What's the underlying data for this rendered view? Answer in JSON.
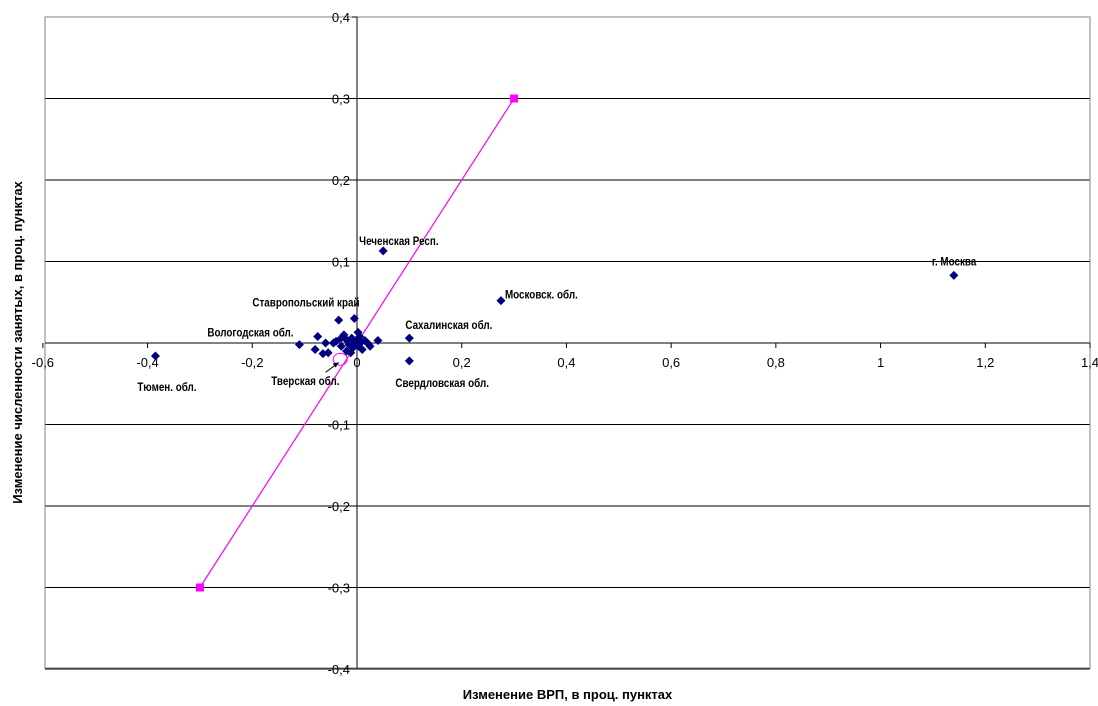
{
  "chart_data": {
    "type": "scatter",
    "title": "",
    "xlabel": "Изменение ВРП, в проц. пунктах",
    "ylabel": "Изменение численности занятых, в проц. пунктах",
    "xlim": [
      -0.6,
      1.4
    ],
    "ylim": [
      -0.4,
      0.4
    ],
    "x_ticks": [
      -0.6,
      -0.4,
      -0.2,
      0,
      0.2,
      0.4,
      0.6,
      0.8,
      1,
      1.2,
      1.4
    ],
    "y_ticks": [
      -0.4,
      -0.3,
      -0.2,
      -0.1,
      0,
      0.1,
      0.2,
      0.3,
      0.4
    ],
    "x_tick_labels": [
      "-0,6",
      "-0,4",
      "-0,2",
      "0",
      "0,2",
      "0,4",
      "0,6",
      "0,8",
      "1",
      "1,2",
      "1,4"
    ],
    "y_tick_labels": [
      "-0,4",
      "-0,3",
      "-0,2",
      "-0,1",
      "0",
      "0,1",
      "0,2",
      "0,3",
      "0,4"
    ],
    "grid": "horizontal",
    "legend": "none",
    "colors": {
      "points": "#000080",
      "line": "#ff00ff",
      "grid": "#000000"
    },
    "series": [
      {
        "marker": "diamond",
        "color": "#000080",
        "points": [
          {
            "x": 1.14,
            "y": 0.083
          },
          {
            "x": 0.275,
            "y": 0.052
          },
          {
            "x": 0.05,
            "y": 0.113
          },
          {
            "x": 0.1,
            "y": 0.006
          },
          {
            "x": 0.1,
            "y": -0.022
          },
          {
            "x": -0.385,
            "y": -0.016
          },
          {
            "x": -0.11,
            "y": -0.002
          },
          {
            "x": -0.035,
            "y": 0.028
          },
          {
            "x": -0.005,
            "y": 0.03
          },
          {
            "x": -0.075,
            "y": 0.008
          },
          {
            "x": -0.08,
            "y": -0.008
          },
          {
            "x": -0.065,
            "y": -0.013
          },
          {
            "x": -0.055,
            "y": -0.012
          },
          {
            "x": -0.06,
            "y": 0.0
          },
          {
            "x": -0.04,
            "y": 0.002
          },
          {
            "x": -0.03,
            "y": -0.004
          },
          {
            "x": -0.025,
            "y": 0.01
          },
          {
            "x": -0.02,
            "y": 0.004
          },
          {
            "x": -0.015,
            "y": -0.002
          },
          {
            "x": -0.01,
            "y": 0.006
          },
          {
            "x": -0.008,
            "y": -0.006
          },
          {
            "x": -0.005,
            "y": 0.0
          },
          {
            "x": 0.0,
            "y": 0.003
          },
          {
            "x": 0.003,
            "y": -0.004
          },
          {
            "x": 0.005,
            "y": 0.008
          },
          {
            "x": 0.008,
            "y": 0.001
          },
          {
            "x": 0.01,
            "y": -0.008
          },
          {
            "x": 0.015,
            "y": 0.003
          },
          {
            "x": 0.02,
            "y": 0.0
          },
          {
            "x": 0.025,
            "y": -0.004
          },
          {
            "x": 0.04,
            "y": 0.003
          },
          {
            "x": -0.02,
            "y": -0.01
          },
          {
            "x": -0.012,
            "y": -0.012
          },
          {
            "x": 0.002,
            "y": 0.013
          },
          {
            "x": -0.03,
            "y": 0.006
          },
          {
            "x": -0.045,
            "y": 0.0
          }
        ]
      },
      {
        "marker": "square",
        "color": "#ff00ff",
        "line": true,
        "points": [
          {
            "x": -0.3,
            "y": -0.3
          },
          {
            "x": 0.3,
            "y": 0.3
          }
        ]
      }
    ],
    "annotations": [
      {
        "text": "г. Москва",
        "x": 1.14,
        "y": 0.083,
        "size": "large"
      },
      {
        "text": "Московск. обл.",
        "x": 0.275,
        "y": 0.052,
        "size": "medium"
      },
      {
        "text": "Чеченская Респ.",
        "x": 0.05,
        "y": 0.113,
        "size": "small"
      },
      {
        "text": "Ставропольский край",
        "x": -0.005,
        "y": 0.03,
        "size": "small"
      },
      {
        "text": "Вологодская обл.",
        "x": -0.11,
        "y": -0.002,
        "size": "small"
      },
      {
        "text": "Сахалинская обл.",
        "x": 0.1,
        "y": 0.006,
        "size": "small"
      },
      {
        "text": "Тверская обл.",
        "x": -0.03,
        "y": -0.022,
        "size": "small"
      },
      {
        "text": "Свердловская обл.",
        "x": 0.1,
        "y": -0.022,
        "size": "small"
      },
      {
        "text": "Тюмен. обл.",
        "x": -0.385,
        "y": -0.016,
        "size": "small"
      }
    ]
  }
}
